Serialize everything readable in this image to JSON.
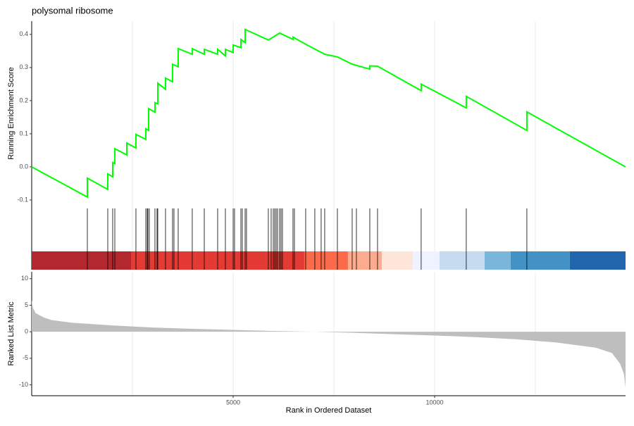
{
  "chart_data": [
    {
      "type": "line",
      "title": "polysomal ribosome",
      "ylabel": "Running Enrichment Score",
      "color": "#00ff00",
      "xlim": [
        0,
        14738
      ],
      "ylim": [
        -0.117,
        0.44
      ],
      "yticks": [
        -0.1,
        {
          "value": 0,
          "label": "0.0"
        },
        0.1,
        0.2,
        0.3,
        0.4
      ],
      "xgrid": [
        2500,
        5000,
        7500,
        10000,
        12500
      ],
      "x": [
        0,
        1381,
        1381,
        1888,
        1888,
        2010,
        2010,
        2063,
        2063,
        2360,
        2360,
        2587,
        2587,
        2832,
        2832,
        2902,
        2902,
        3059,
        3059,
        3129,
        3129,
        3321,
        3321,
        3496,
        3496,
        3636,
        3636,
        3985,
        3985,
        4283,
        4283,
        4615,
        4615,
        4807,
        4807,
        5000,
        5000,
        5192,
        5192,
        5297,
        5297,
        5873,
        6153,
        6485,
        6485,
        6800,
        7272,
        7587,
        7954,
        8391,
        8391,
        8583,
        9666,
        9666,
        10785,
        10785,
        12289,
        12289,
        14738
      ],
      "values": [
        0,
        -0.091,
        -0.034,
        -0.068,
        -0.021,
        -0.03,
        0.013,
        0.01,
        0.055,
        0.036,
        0.072,
        0.057,
        0.098,
        0.083,
        0.115,
        0.11,
        0.176,
        0.165,
        0.194,
        0.19,
        0.253,
        0.234,
        0.268,
        0.257,
        0.31,
        0.302,
        0.357,
        0.34,
        0.357,
        0.34,
        0.355,
        0.34,
        0.355,
        0.335,
        0.355,
        0.345,
        0.368,
        0.36,
        0.385,
        0.375,
        0.415,
        0.383,
        0.404,
        0.385,
        0.392,
        0.37,
        0.34,
        0.332,
        0.31,
        0.295,
        0.305,
        0.304,
        0.23,
        0.25,
        0.178,
        0.213,
        0.11,
        0.166,
        0
      ]
    },
    {
      "type": "rug",
      "xlim": [
        0,
        14738
      ],
      "xgrid": [
        2500,
        5000,
        7500,
        10000,
        12500
      ],
      "hits": [
        1381,
        1888,
        2010,
        2063,
        2587,
        2832,
        2867,
        2884,
        2919,
        3059,
        3111,
        3129,
        3321,
        3496,
        3531,
        3636,
        3985,
        4283,
        4615,
        4807,
        5000,
        5034,
        5192,
        5227,
        5297,
        5331,
        5873,
        5943,
        5996,
        6031,
        6066,
        6101,
        6153,
        6188,
        6223,
        6485,
        6520,
        6800,
        7027,
        7184,
        7272,
        7587,
        7954,
        8059,
        8391,
        8583,
        9666,
        10785,
        12289
      ],
      "band_edges": [
        0,
        2465,
        6765,
        7849,
        8688,
        9457,
        10121,
        11240,
        11886,
        13355,
        14738
      ],
      "band_colors": [
        "#b2282e",
        "#e33a33",
        "#fb6a4a",
        "#fcab8f",
        "#fee5d9",
        "#eff3ff",
        "#c6dbef",
        "#7ab6d9",
        "#4292c6",
        "#2166ac"
      ]
    },
    {
      "type": "area",
      "ylabel": "Ranked List Metric",
      "xlabel": "Rank in Ordered Dataset",
      "color": "#bebebe",
      "xlim": [
        0,
        14738
      ],
      "ylim": [
        -12.05,
        11.3
      ],
      "yticks": [
        -10,
        -5,
        0,
        5,
        10
      ],
      "xticks": [
        5000,
        10000
      ],
      "xgrid": [
        2500,
        5000,
        7500,
        10000,
        12500
      ],
      "x": [
        0,
        30,
        100,
        300,
        500,
        1000,
        2000,
        3000,
        4000,
        5000,
        6000,
        7000,
        8000,
        9000,
        10000,
        11000,
        12000,
        13000,
        14000,
        14400,
        14600,
        14700,
        14738
      ],
      "values": [
        6,
        4.5,
        3.5,
        2.7,
        2.2,
        1.7,
        1.2,
        0.8,
        0.55,
        0.35,
        0.15,
        0,
        -0.2,
        -0.45,
        -0.7,
        -1.0,
        -1.4,
        -2.0,
        -3.0,
        -4.0,
        -6,
        -8,
        -10.5
      ]
    }
  ]
}
